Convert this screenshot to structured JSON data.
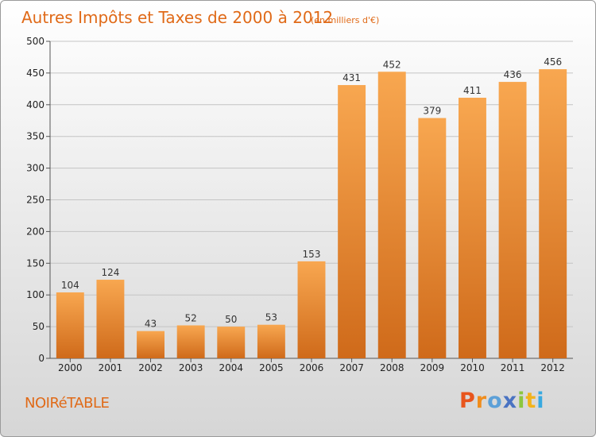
{
  "chart_data": {
    "type": "bar",
    "title": "Autres Impôts et Taxes de 2000 à 2012",
    "subtitle": "(en milliers d'€)",
    "categories": [
      "2000",
      "2001",
      "2002",
      "2003",
      "2004",
      "2005",
      "2006",
      "2007",
      "2008",
      "2009",
      "2010",
      "2011",
      "2012"
    ],
    "values": [
      104,
      124,
      43,
      52,
      50,
      53,
      153,
      431,
      452,
      379,
      411,
      436,
      456
    ],
    "ylim": [
      0,
      500
    ],
    "yticks": [
      0,
      50,
      100,
      150,
      200,
      250,
      300,
      350,
      400,
      450,
      500
    ],
    "grid": true,
    "bar_color": "#f39a3c",
    "bar_color_dark": "#d06a1c"
  },
  "footer": {
    "commune": "NOIRéTABLE",
    "logo": [
      "P",
      "r",
      "o",
      "x",
      "i",
      "t",
      "i"
    ],
    "logo_colors": [
      "#e8551d",
      "#f08d1c",
      "#5ca0d8",
      "#4a73c2",
      "#8cc63e",
      "#f2b31c",
      "#38a9e0"
    ]
  }
}
